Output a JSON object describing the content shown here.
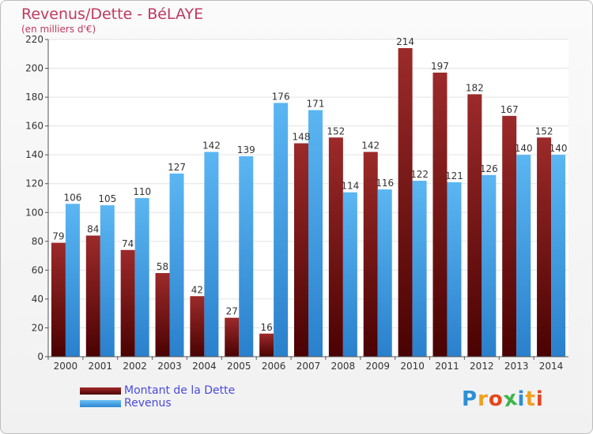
{
  "header": {
    "title": "Revenus/Dette - BéLAYE",
    "subtitle": "(en milliers d'€)"
  },
  "legend": {
    "debt_label": "Montant de la Dette",
    "revenue_label": "Revenus"
  },
  "logo": {
    "letters": [
      "P",
      "r",
      "o",
      "x",
      "i",
      "t",
      "i"
    ],
    "colors": [
      "#2c8fd6",
      "#f0a020",
      "#e8451c",
      "#3db54a",
      "#2c8fd6",
      "#f0a020",
      "#e8451c"
    ]
  },
  "colors": {
    "debt": "#7a1515",
    "revenue": "#4aa3e6",
    "text": "#333333",
    "title": "#c0395f",
    "legend_text": "#4a4ae0"
  },
  "chart_data": {
    "type": "bar",
    "title": "Revenus/Dette - BéLAYE",
    "subtitle": "(en milliers d'€)",
    "categories": [
      "2000",
      "2001",
      "2002",
      "2003",
      "2004",
      "2005",
      "2006",
      "2007",
      "2008",
      "2009",
      "2010",
      "2011",
      "2012",
      "2013",
      "2014"
    ],
    "series": [
      {
        "name": "Montant de la Dette",
        "values": [
          79,
          84,
          74,
          58,
          42,
          27,
          16,
          148,
          152,
          142,
          214,
          197,
          182,
          167,
          152
        ]
      },
      {
        "name": "Revenus",
        "values": [
          106,
          105,
          110,
          127,
          142,
          139,
          176,
          171,
          114,
          116,
          122,
          121,
          126,
          140,
          140
        ]
      }
    ],
    "ylim": [
      0,
      220
    ],
    "yticks": [
      "0",
      "20",
      "40",
      "60",
      "80",
      "100",
      "120",
      "140",
      "160",
      "180",
      "200",
      "220"
    ],
    "grid": true,
    "legend_position": "bottom-left"
  }
}
